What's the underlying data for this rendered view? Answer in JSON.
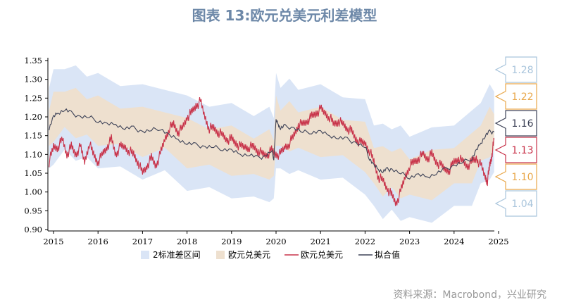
{
  "title": "图表 13:欧元兑美元利差模型",
  "source": "资料来源：Macrobond，兴业研究",
  "colors": {
    "band2": "#dae5f6",
    "band1": "#eee0cf",
    "spot": "#c8334a",
    "fit": "#3d4257",
    "title": "#6d88a8",
    "call_blue": "#a9c5dc",
    "call_orange": "#e9a84b",
    "call_dark": "#3d4257",
    "call_red": "#c8334a"
  },
  "chart_data": {
    "type": "line",
    "title": "图表 13:欧元兑美元利差模型",
    "xlabel": "",
    "ylabel": "",
    "xlim": [
      2015.0,
      2025.0
    ],
    "ylim": [
      0.9,
      1.35
    ],
    "yticks": [
      "1.35",
      "1.30",
      "1.25",
      "1.20",
      "1.15",
      "1.10",
      "1.05",
      "1.00",
      "0.95",
      "0.90"
    ],
    "xticks": [
      "2015",
      "2016",
      "2017",
      "2018",
      "2019",
      "2020",
      "2021",
      "2022",
      "2023",
      "2024",
      "2025"
    ],
    "grid": false,
    "legend_position": "bottom",
    "legend": [
      "2标准差区间",
      "欧元兑美元",
      "欧元兑美元",
      "拟合值"
    ],
    "fit_x": [
      2014.9,
      2015.0,
      2015.1,
      2015.25,
      2015.4,
      2015.6,
      2015.8,
      2016.0,
      2016.2,
      2016.4,
      2016.6,
      2016.8,
      2017.0,
      2017.2,
      2017.4,
      2017.6,
      2017.8,
      2018.0,
      2018.2,
      2018.4,
      2018.6,
      2018.8,
      2019.0,
      2019.2,
      2019.4,
      2019.6,
      2019.75,
      2019.9,
      2019.95,
      2020.0,
      2020.05,
      2020.1,
      2020.2,
      2020.4,
      2020.6,
      2020.8,
      2021.0,
      2021.2,
      2021.4,
      2021.6,
      2021.8,
      2022.0,
      2022.1,
      2022.2,
      2022.3,
      2022.4,
      2022.5,
      2022.6,
      2022.8,
      2023.0,
      2023.2,
      2023.4,
      2023.6,
      2023.8,
      2024.0,
      2024.2,
      2024.4,
      2024.5,
      2024.6,
      2024.7,
      2024.8,
      2024.9
    ],
    "fit_y": [
      1.17,
      1.2,
      1.21,
      1.22,
      1.21,
      1.2,
      1.2,
      1.19,
      1.18,
      1.18,
      1.17,
      1.17,
      1.16,
      1.165,
      1.17,
      1.15,
      1.14,
      1.13,
      1.125,
      1.12,
      1.12,
      1.115,
      1.11,
      1.1,
      1.1,
      1.09,
      1.095,
      1.11,
      1.09,
      1.19,
      1.18,
      1.17,
      1.175,
      1.17,
      1.16,
      1.16,
      1.16,
      1.15,
      1.145,
      1.14,
      1.13,
      1.12,
      1.09,
      1.07,
      1.06,
      1.055,
      1.06,
      1.06,
      1.05,
      1.04,
      1.045,
      1.04,
      1.05,
      1.06,
      1.07,
      1.08,
      1.09,
      1.11,
      1.13,
      1.15,
      1.16,
      1.16
    ],
    "spot_x": [
      2014.9,
      2015.0,
      2015.1,
      2015.2,
      2015.3,
      2015.4,
      2015.5,
      2015.6,
      2015.7,
      2015.8,
      2015.9,
      2016.0,
      2016.1,
      2016.2,
      2016.3,
      2016.4,
      2016.5,
      2016.6,
      2016.7,
      2016.8,
      2016.9,
      2017.0,
      2017.1,
      2017.2,
      2017.3,
      2017.4,
      2017.5,
      2017.6,
      2017.7,
      2017.8,
      2017.9,
      2018.0,
      2018.1,
      2018.2,
      2018.3,
      2018.4,
      2018.5,
      2018.6,
      2018.7,
      2018.8,
      2018.9,
      2019.0,
      2019.1,
      2019.2,
      2019.3,
      2019.4,
      2019.5,
      2019.6,
      2019.7,
      2019.8,
      2019.9,
      2020.0,
      2020.1,
      2020.2,
      2020.3,
      2020.4,
      2020.5,
      2020.6,
      2020.7,
      2020.8,
      2020.9,
      2021.0,
      2021.1,
      2021.2,
      2021.3,
      2021.4,
      2021.5,
      2021.6,
      2021.7,
      2021.8,
      2021.9,
      2022.0,
      2022.1,
      2022.2,
      2022.3,
      2022.4,
      2022.5,
      2022.6,
      2022.7,
      2022.8,
      2022.9,
      2023.0,
      2023.1,
      2023.2,
      2023.3,
      2023.4,
      2023.5,
      2023.6,
      2023.7,
      2023.8,
      2023.9,
      2024.0,
      2024.1,
      2024.2,
      2024.3,
      2024.4,
      2024.5,
      2024.6,
      2024.7,
      2024.75,
      2024.8,
      2024.85,
      2024.9
    ],
    "spot_y": [
      1.08,
      1.12,
      1.12,
      1.14,
      1.1,
      1.12,
      1.1,
      1.12,
      1.08,
      1.13,
      1.1,
      1.08,
      1.1,
      1.12,
      1.14,
      1.1,
      1.12,
      1.12,
      1.11,
      1.1,
      1.08,
      1.05,
      1.07,
      1.09,
      1.07,
      1.1,
      1.14,
      1.17,
      1.18,
      1.16,
      1.17,
      1.2,
      1.21,
      1.23,
      1.24,
      1.2,
      1.17,
      1.17,
      1.16,
      1.15,
      1.14,
      1.14,
      1.13,
      1.12,
      1.12,
      1.12,
      1.12,
      1.11,
      1.1,
      1.1,
      1.11,
      1.1,
      1.1,
      1.12,
      1.13,
      1.15,
      1.18,
      1.18,
      1.19,
      1.2,
      1.21,
      1.22,
      1.21,
      1.2,
      1.18,
      1.19,
      1.18,
      1.17,
      1.16,
      1.14,
      1.13,
      1.13,
      1.11,
      1.08,
      1.04,
      1.03,
      1.01,
      0.99,
      0.97,
      1.0,
      1.04,
      1.07,
      1.08,
      1.09,
      1.1,
      1.09,
      1.1,
      1.08,
      1.07,
      1.06,
      1.06,
      1.08,
      1.09,
      1.08,
      1.07,
      1.08,
      1.09,
      1.07,
      1.04,
      1.03,
      1.07,
      1.1,
      1.14
    ],
    "band_x": [
      2014.9,
      2015.0,
      2015.25,
      2015.5,
      2015.75,
      2016.0,
      2016.5,
      2017.0,
      2017.5,
      2018.0,
      2018.5,
      2019.0,
      2019.5,
      2019.85,
      2019.95,
      2020.0,
      2020.1,
      2020.3,
      2020.5,
      2021.0,
      2021.5,
      2022.0,
      2022.2,
      2022.4,
      2022.6,
      2022.8,
      2023.0,
      2023.5,
      2024.0,
      2024.4,
      2024.6,
      2024.8,
      2024.9
    ],
    "band_mid": [
      1.17,
      1.2,
      1.22,
      1.21,
      1.2,
      1.19,
      1.175,
      1.16,
      1.165,
      1.13,
      1.12,
      1.11,
      1.095,
      1.1,
      1.09,
      1.19,
      1.17,
      1.175,
      1.165,
      1.16,
      1.145,
      1.12,
      1.07,
      1.055,
      1.06,
      1.05,
      1.04,
      1.045,
      1.07,
      1.09,
      1.13,
      1.16,
      1.16
    ],
    "band1_half": 0.055,
    "band2_half": 0.115,
    "callouts": [
      {
        "label": "1.28",
        "style": "blue"
      },
      {
        "label": "1.22",
        "style": "orange"
      },
      {
        "label": "1.16",
        "style": "dark"
      },
      {
        "label": "1.13",
        "style": "red"
      },
      {
        "label": "1.10",
        "style": "orange"
      },
      {
        "label": "1.04",
        "style": "blue"
      }
    ]
  }
}
